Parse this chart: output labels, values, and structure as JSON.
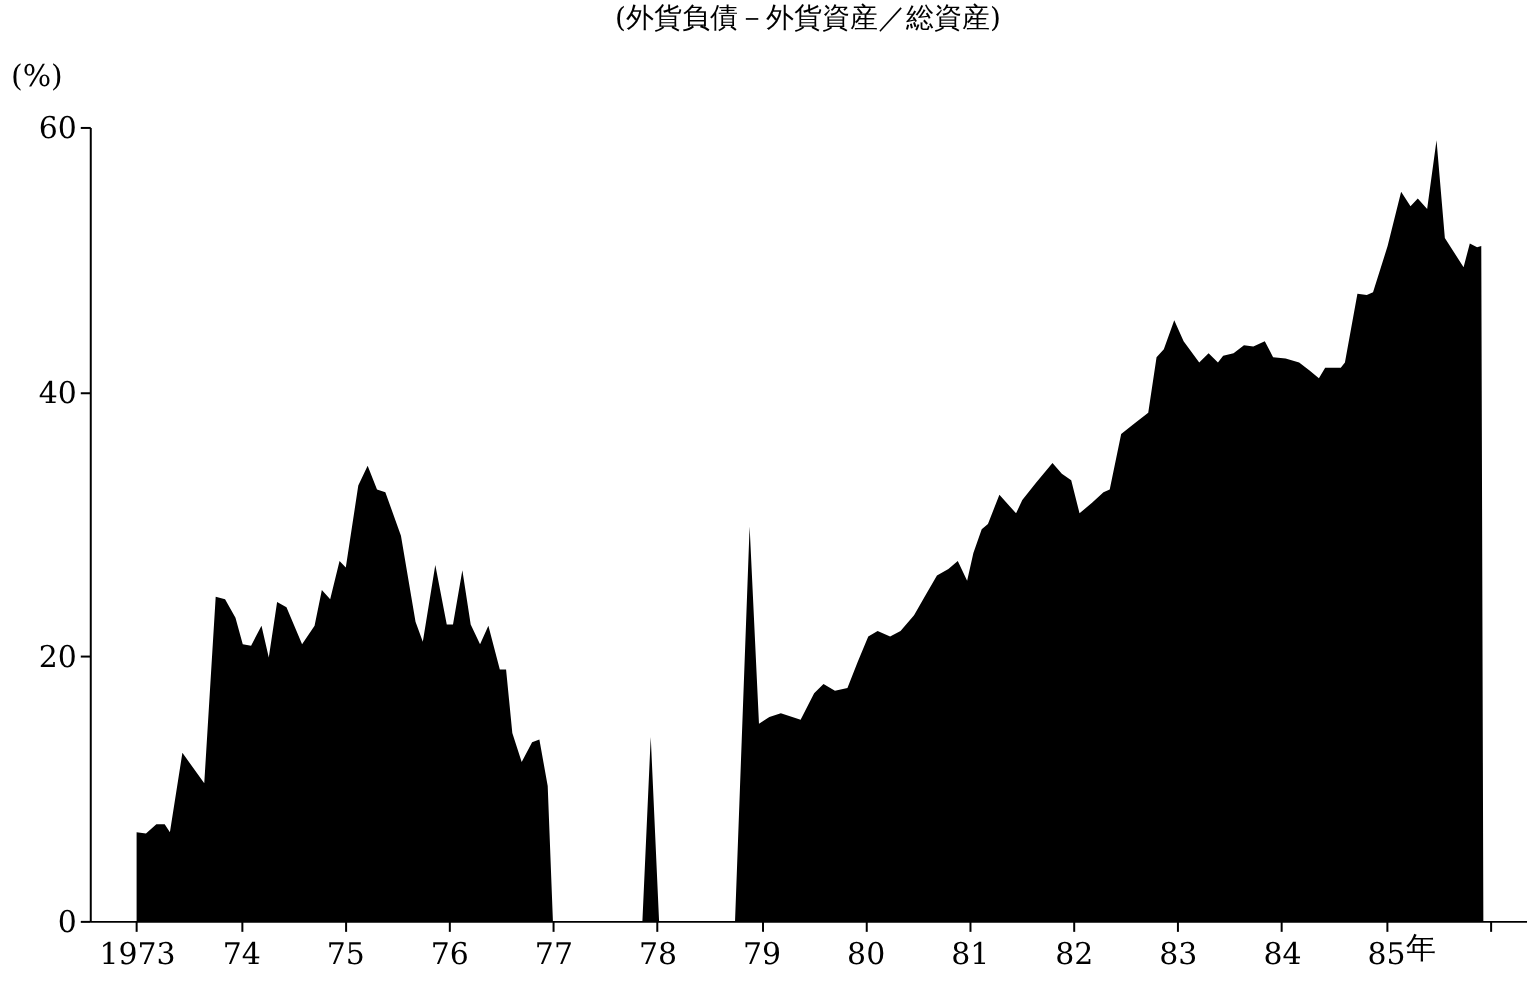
{
  "chart_data": {
    "type": "area",
    "title": "(外貨負債－外貨資産／総資産)",
    "ylabel": "(%)",
    "xlabel": "年",
    "color": "#000000",
    "x": [
      1973.0,
      1973.09,
      1973.19,
      1973.27,
      1973.32,
      1973.44,
      1973.65,
      1973.76,
      1973.85,
      1973.95,
      1974.02,
      1974.1,
      1974.2,
      1974.27,
      1974.35,
      1974.44,
      1974.59,
      1974.71,
      1974.78,
      1974.86,
      1974.95,
      1975.01,
      1975.13,
      1975.22,
      1975.31,
      1975.39,
      1975.54,
      1975.68,
      1975.75,
      1975.87,
      1975.98,
      1976.04,
      1976.13,
      1976.21,
      1976.3,
      1976.38,
      1976.49,
      1976.55,
      1976.61,
      1976.7,
      1976.8,
      1976.87,
      1976.95,
      1977.0,
      1977.86,
      1977.94,
      1978.02,
      1978.75,
      1978.89,
      1978.98,
      1979.08,
      1979.19,
      1979.3,
      1979.38,
      1979.51,
      1979.6,
      1979.71,
      1979.83,
      1979.93,
      1980.03,
      1980.12,
      1980.24,
      1980.34,
      1980.47,
      1980.58,
      1980.69,
      1980.8,
      1980.89,
      1980.98,
      1981.04,
      1981.12,
      1981.18,
      1981.29,
      1981.45,
      1981.51,
      1981.64,
      1981.8,
      1981.89,
      1981.98,
      1982.06,
      1982.18,
      1982.29,
      1982.35,
      1982.46,
      1982.59,
      1982.72,
      1982.8,
      1982.87,
      1982.97,
      1983.06,
      1983.21,
      1983.3,
      1983.39,
      1983.44,
      1983.54,
      1983.64,
      1983.73,
      1983.84,
      1983.92,
      1984.04,
      1984.17,
      1984.27,
      1984.36,
      1984.42,
      1984.57,
      1984.61,
      1984.73,
      1984.82,
      1984.88,
      1985.02,
      1985.15,
      1985.24,
      1985.31,
      1985.4,
      1985.49,
      1985.57,
      1985.75,
      1985.81,
      1985.88,
      1985.92,
      1985.94
    ],
    "values": [
      6.7,
      6.6,
      7.3,
      7.3,
      6.7,
      12.7,
      10.4,
      24.5,
      24.3,
      22.9,
      20.9,
      20.8,
      22.3,
      19.9,
      24.1,
      23.7,
      20.9,
      22.3,
      25.0,
      24.3,
      27.2,
      26.7,
      32.9,
      34.4,
      32.6,
      32.4,
      29.1,
      22.6,
      21.1,
      26.9,
      22.4,
      22.4,
      26.5,
      22.4,
      20.9,
      22.3,
      19.0,
      19.0,
      14.2,
      12.0,
      13.5,
      13.7,
      10.2,
      0,
      0,
      13.9,
      0,
      0,
      29.8,
      14.9,
      15.4,
      15.7,
      15.4,
      15.2,
      17.2,
      17.9,
      17.4,
      17.6,
      19.6,
      21.5,
      21.9,
      21.5,
      21.9,
      23.1,
      24.6,
      26.1,
      26.6,
      27.2,
      25.7,
      27.8,
      29.6,
      30.0,
      32.2,
      30.8,
      31.8,
      33.1,
      34.6,
      33.8,
      33.3,
      30.8,
      31.6,
      32.4,
      32.6,
      36.8,
      37.6,
      38.4,
      42.6,
      43.2,
      45.4,
      43.8,
      42.2,
      42.9,
      42.2,
      42.7,
      42.9,
      43.5,
      43.4,
      43.8,
      42.6,
      42.5,
      42.2,
      41.6,
      41.0,
      41.8,
      41.8,
      42.2,
      47.4,
      47.3,
      47.5,
      51.0,
      55.1,
      54.0,
      54.6,
      53.8,
      59.0,
      51.6,
      49.4,
      51.2,
      50.9,
      51.0,
      0
    ],
    "xlim": [
      1972.55,
      1986.35
    ],
    "xticks": [
      {
        "value": 1973,
        "label": "1973"
      },
      {
        "value": 1974,
        "label": "74"
      },
      {
        "value": 1975,
        "label": "75"
      },
      {
        "value": 1976,
        "label": "76"
      },
      {
        "value": 1977,
        "label": "77"
      },
      {
        "value": 1978,
        "label": "78"
      },
      {
        "value": 1979,
        "label": "79"
      },
      {
        "value": 1980,
        "label": "80"
      },
      {
        "value": 1981,
        "label": "81"
      },
      {
        "value": 1982,
        "label": "82"
      },
      {
        "value": 1983,
        "label": "83"
      },
      {
        "value": 1984,
        "label": "84"
      },
      {
        "value": 1985,
        "label": "85"
      },
      {
        "value": 1986,
        "label": null
      }
    ],
    "ylim": [
      0,
      60
    ],
    "yticks": [
      0,
      20,
      40,
      60
    ]
  }
}
